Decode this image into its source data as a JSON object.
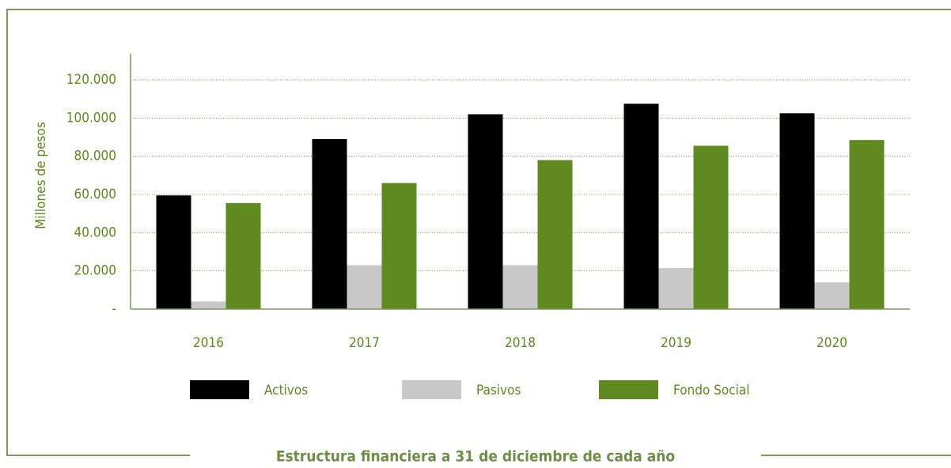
{
  "chart_data": {
    "type": "bar",
    "caption": "Estructura financiera a 31 de diciembre de cada año",
    "y_label": "Millones de pesos",
    "categories": [
      "2016",
      "2017",
      "2018",
      "2019",
      "2020"
    ],
    "series": [
      {
        "name": "Activos",
        "color": "#000000",
        "values": [
          59500,
          89000,
          102000,
          107500,
          102500
        ]
      },
      {
        "name": "Pasivos",
        "color": "#c8c8c8",
        "values": [
          4000,
          23000,
          23000,
          21500,
          14000
        ]
      },
      {
        "name": "Fondo Social",
        "color": "#5f8a1f",
        "values": [
          55500,
          66000,
          78000,
          85500,
          88500
        ]
      }
    ],
    "ylim": [
      0,
      120000
    ],
    "yticks": [
      {
        "value": 0,
        "label": "-"
      },
      {
        "value": 20000,
        "label": "20.000"
      },
      {
        "value": 40000,
        "label": "40.000"
      },
      {
        "value": 60000,
        "label": "60.000"
      },
      {
        "value": 80000,
        "label": "80.000"
      },
      {
        "value": 100000,
        "label": "100.000"
      },
      {
        "value": 120000,
        "label": "120.000"
      }
    ],
    "grid": true
  }
}
